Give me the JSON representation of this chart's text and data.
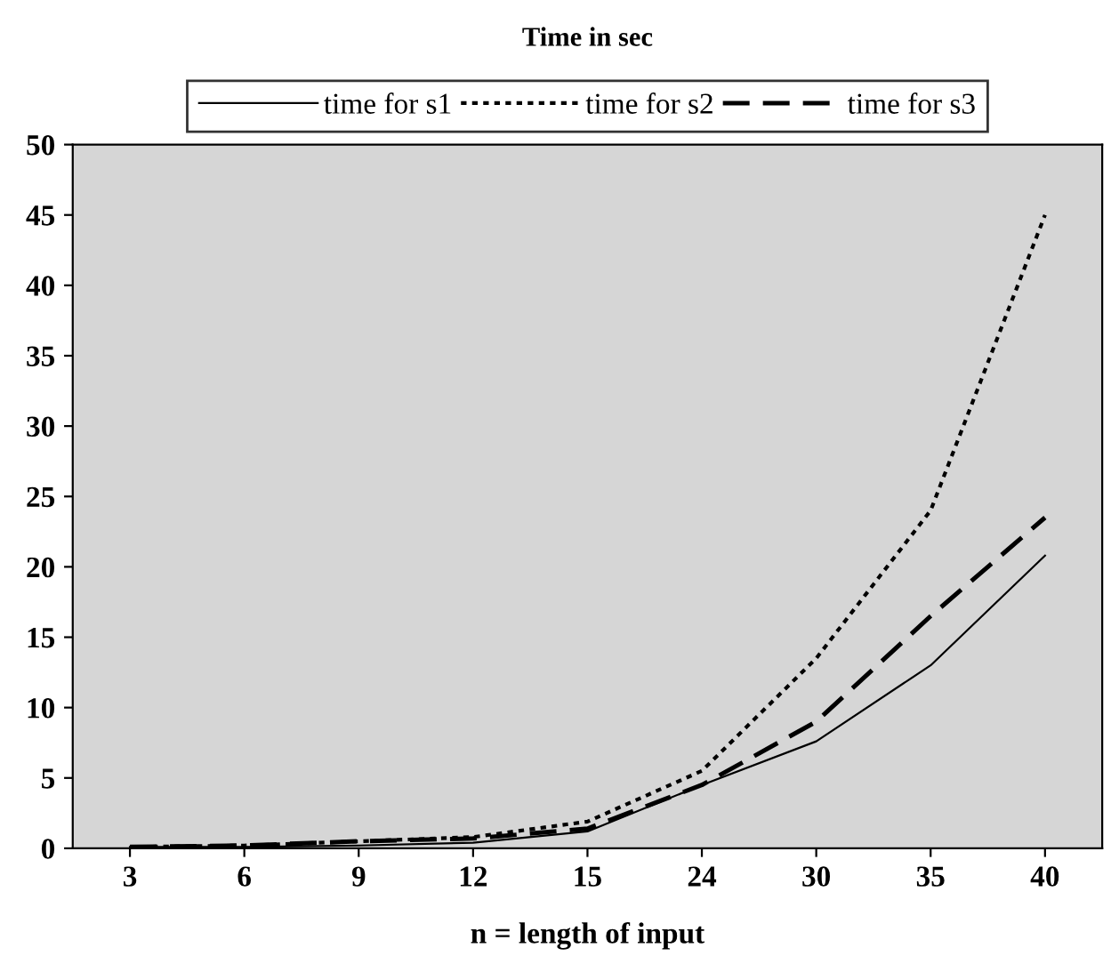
{
  "chart_data": {
    "type": "line",
    "title": "Time in sec",
    "xlabel": "n = length of input",
    "categories": [
      "3",
      "6",
      "9",
      "12",
      "15",
      "24",
      "30",
      "35",
      "40"
    ],
    "series": [
      {
        "name": "time for s1",
        "color": "#000000",
        "line_style": "solid",
        "values": [
          0.1,
          0.1,
          0.2,
          0.4,
          1.2,
          4.5,
          7.6,
          13,
          20.8
        ]
      },
      {
        "name": "time for s2",
        "color": "#000000",
        "line_style": "dotted",
        "values": [
          0.1,
          0.2,
          0.5,
          0.8,
          1.9,
          5.5,
          13.5,
          24,
          45
        ]
      },
      {
        "name": "time for s3",
        "color": "#000000",
        "line_style": "dashed",
        "values": [
          0.1,
          0.2,
          0.5,
          0.7,
          1.4,
          4.5,
          9,
          16.5,
          23.5
        ]
      }
    ],
    "ylim": [
      0,
      50
    ],
    "yticks": [
      0,
      5,
      10,
      15,
      20,
      25,
      30,
      35,
      40,
      45,
      50
    ],
    "grid": false,
    "legend": "top",
    "marker": "none"
  }
}
